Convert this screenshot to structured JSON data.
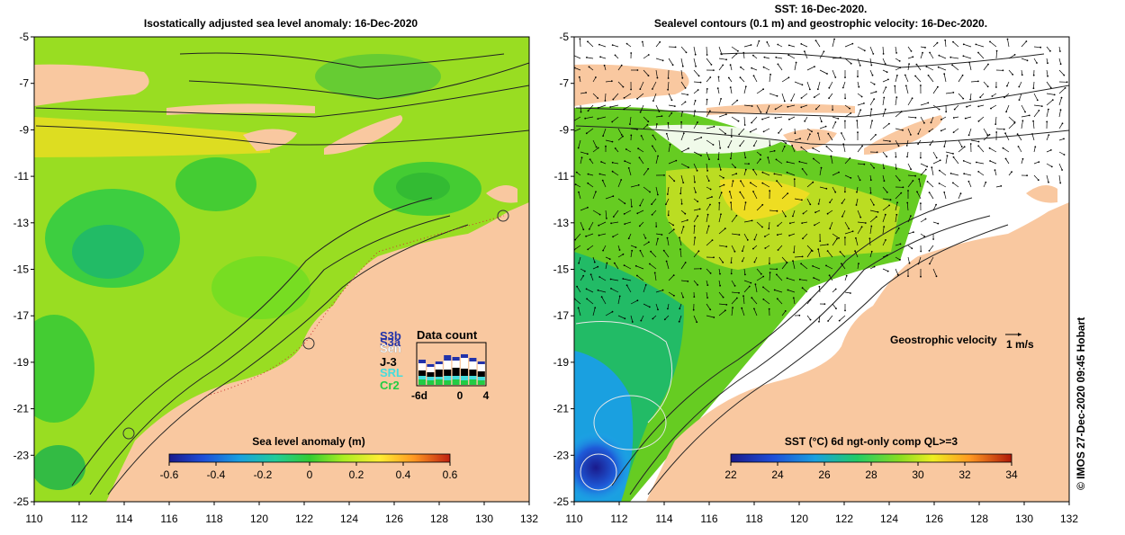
{
  "left_panel": {
    "title": "Isostatically adjusted sea level anomaly: 16-Dec-2020",
    "colorbar": {
      "label": "Sea level anomaly (m)",
      "ticks": [
        "-0.6",
        "-0.4",
        "-0.2",
        "0",
        "0.2",
        "0.4",
        "0.6"
      ]
    },
    "data_count": {
      "title": "Data count",
      "legend": [
        {
          "label": "S3b",
          "color": "#2233aa"
        },
        {
          "label": "S3a",
          "color": "#2233aa"
        },
        {
          "label": "Sen",
          "color": "#ffffff"
        },
        {
          "label": "J-3",
          "color": "#000000"
        },
        {
          "label": "SRL",
          "color": "#44dddd"
        },
        {
          "label": "Cr2",
          "color": "#22cc44"
        }
      ],
      "x_ticks": [
        "-6d",
        "0",
        "4"
      ]
    }
  },
  "right_panel": {
    "title_line1": "SST: 16-Dec-2020.",
    "title_line2": "Sealevel contours (0.1 m) and geostrophic velocity: 16-Dec-2020.",
    "colorbar": {
      "label": "SST (°C) 6d ngt-only comp QL>=3",
      "ticks": [
        "22",
        "24",
        "26",
        "28",
        "30",
        "32",
        "34"
      ]
    },
    "velocity_legend": {
      "label": "Geostrophic velocity",
      "scale": "1 m/s"
    }
  },
  "axes": {
    "x_ticks": [
      "110",
      "112",
      "114",
      "116",
      "118",
      "120",
      "122",
      "124",
      "126",
      "128",
      "130",
      "132"
    ],
    "y_ticks": [
      "-5",
      "-7",
      "-9",
      "-11",
      "-13",
      "-15",
      "-17",
      "-19",
      "-21",
      "-23",
      "-25"
    ]
  },
  "credit": "© IMOS 27-Dec-2020 09:45 Hobart",
  "colors": {
    "land": "#f9c8a0",
    "sla_mid": "#99dd22",
    "sst_mid": "#66cc22",
    "cloud": "#ffffff"
  }
}
